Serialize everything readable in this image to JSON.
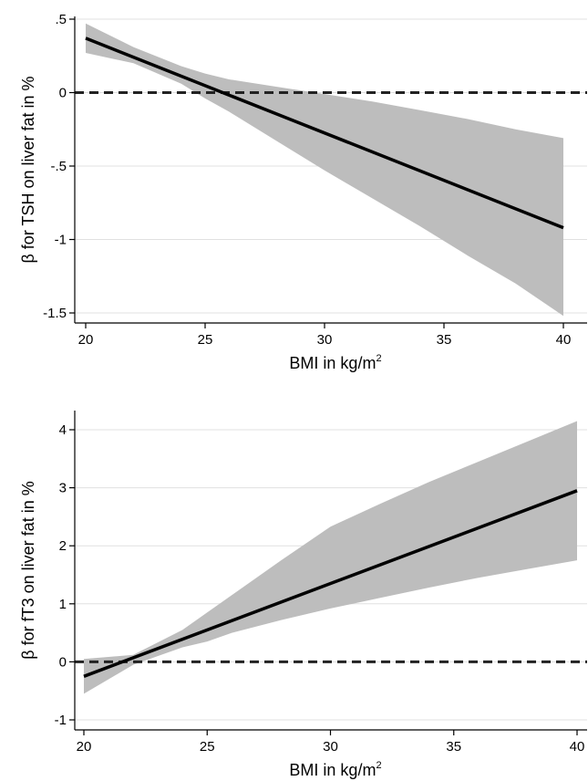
{
  "chart_data": [
    {
      "type": "line",
      "xlabel": "BMI in kg/m",
      "xlabel_sup": "2",
      "ylabel": "β for TSH on liver fat in %",
      "xlim": [
        20,
        40
      ],
      "ylim": [
        -1.5,
        0.5
      ],
      "xticks": [
        20,
        25,
        30,
        35,
        40
      ],
      "xtick_labels": [
        "20",
        "25",
        "30",
        "35",
        "40"
      ],
      "yticks": [
        -1.5,
        -1,
        -0.5,
        0,
        0.5
      ],
      "ytick_labels": [
        "-1.5",
        "-1",
        "-.5",
        "0",
        ".5"
      ],
      "grid": true,
      "reference_line": 0,
      "series": [
        {
          "x": [
            20,
            40
          ],
          "values": [
            0.37,
            -0.92
          ]
        }
      ],
      "ci_band": {
        "x": [
          20,
          22,
          24,
          25,
          26,
          28,
          30,
          32,
          34,
          36,
          38,
          40
        ],
        "upper": [
          0.47,
          0.31,
          0.18,
          0.13,
          0.09,
          0.04,
          -0.01,
          -0.06,
          -0.12,
          -0.18,
          -0.25,
          -0.31
        ],
        "lower": [
          0.27,
          0.2,
          0.06,
          -0.04,
          -0.13,
          -0.33,
          -0.53,
          -0.72,
          -0.91,
          -1.11,
          -1.3,
          -1.52
        ]
      },
      "colors": {
        "line": "#000000",
        "band": "#bdbdbd",
        "ref": "#222222",
        "grid": "#e0e0e0"
      }
    },
    {
      "type": "line",
      "xlabel": "BMI in kg/m",
      "xlabel_sup": "2",
      "ylabel": "β for fT3 on liver fat in %",
      "xlim": [
        20,
        40
      ],
      "ylim": [
        -1,
        4
      ],
      "xticks": [
        20,
        25,
        30,
        35,
        40
      ],
      "xtick_labels": [
        "20",
        "25",
        "30",
        "35",
        "40"
      ],
      "yticks": [
        -1,
        0,
        1,
        2,
        3,
        4
      ],
      "ytick_labels": [
        "-1",
        "0",
        "1",
        "2",
        "3",
        "4"
      ],
      "grid": true,
      "reference_line": 0,
      "series": [
        {
          "x": [
            20,
            40
          ],
          "values": [
            -0.25,
            2.95
          ]
        }
      ],
      "ci_band": {
        "x": [
          20,
          22,
          24,
          25,
          26,
          28,
          30,
          32,
          34,
          36,
          38,
          40
        ],
        "upper": [
          0.05,
          0.12,
          0.55,
          0.85,
          1.15,
          1.75,
          2.33,
          2.72,
          3.1,
          3.45,
          3.8,
          4.15
        ],
        "lower": [
          -0.55,
          -0.05,
          0.25,
          0.35,
          0.5,
          0.72,
          0.92,
          1.1,
          1.28,
          1.45,
          1.6,
          1.75
        ]
      },
      "colors": {
        "line": "#000000",
        "band": "#bdbdbd",
        "ref": "#222222",
        "grid": "#e0e0e0"
      }
    }
  ]
}
